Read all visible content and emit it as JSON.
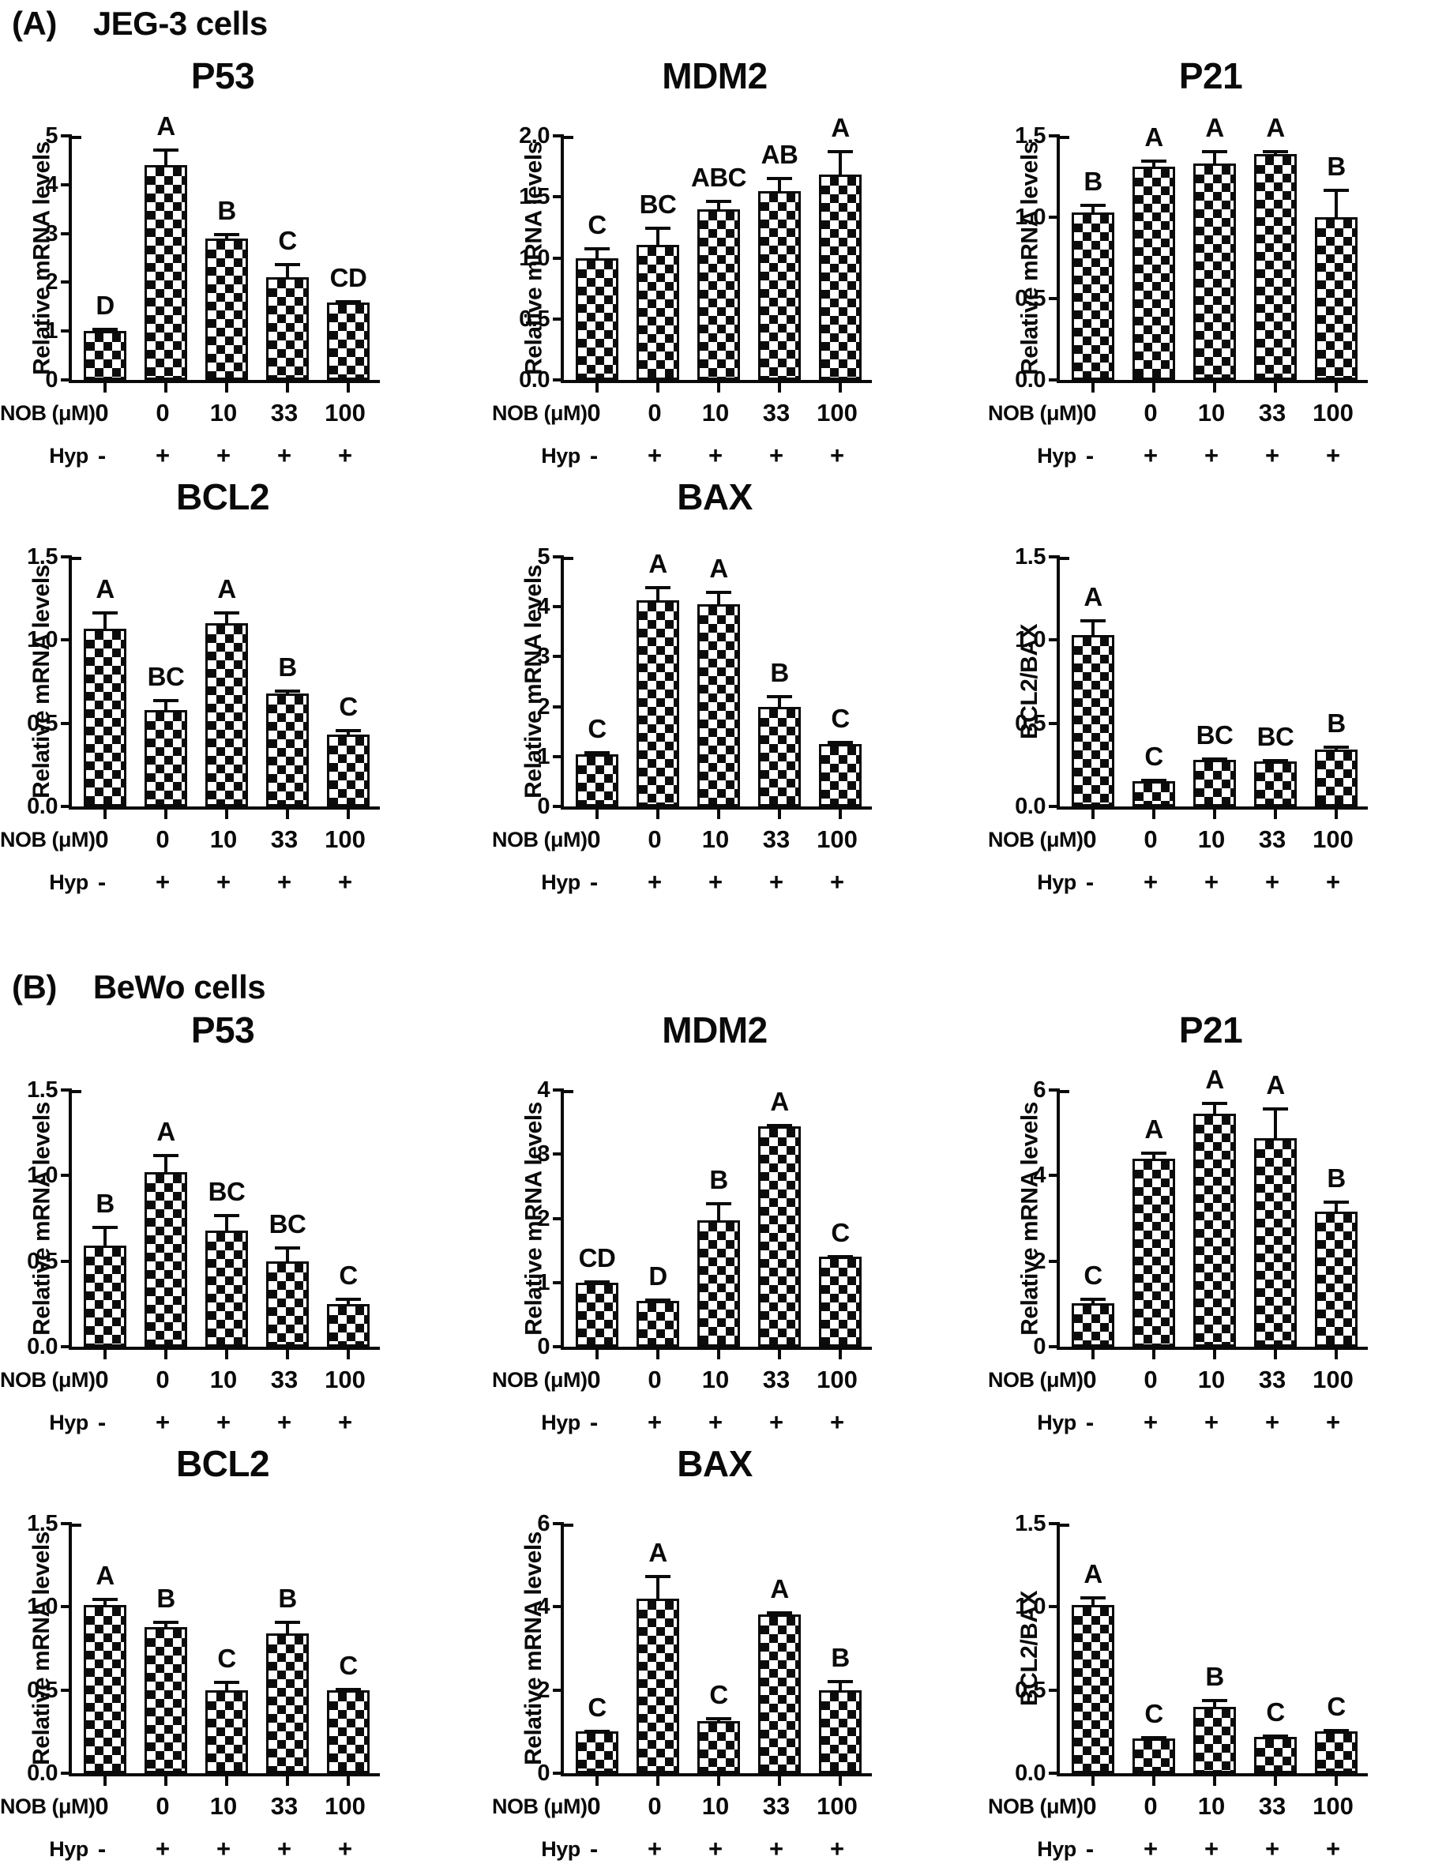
{
  "page": {
    "background": "#ffffff",
    "ink": "#0a0a0a",
    "bar_pattern": "black-white-checkerboard"
  },
  "panels": [
    {
      "id": "A",
      "label": "(A)",
      "cell_line": "JEG-3 cells"
    },
    {
      "id": "B",
      "label": "(B)",
      "cell_line": "BeWo cells"
    }
  ],
  "x_axis": {
    "nob_label": "NOB (μM)",
    "hyp_label": "Hyp",
    "nob_values": [
      "0",
      "0",
      "10",
      "33",
      "100"
    ],
    "hyp_values": [
      "-",
      "+",
      "+",
      "+",
      "+"
    ]
  },
  "chart_data": [
    {
      "panel": "A",
      "type": "bar",
      "title": "P53",
      "ylabel": "Relative mRNA levels",
      "ylim": [
        0,
        5
      ],
      "yticks": [
        "0",
        "1",
        "2",
        "3",
        "4",
        "5"
      ],
      "categories": [
        "0",
        "0",
        "10",
        "33",
        "100"
      ],
      "hyp": [
        "-",
        "+",
        "+",
        "+",
        "+"
      ],
      "bars": [
        {
          "value": 1.0,
          "error": 0.05,
          "sig": "D"
        },
        {
          "value": 4.4,
          "error": 0.33,
          "sig": "A"
        },
        {
          "value": 2.9,
          "error": 0.1,
          "sig": "B"
        },
        {
          "value": 2.1,
          "error": 0.28,
          "sig": "C"
        },
        {
          "value": 1.58,
          "error": 0.04,
          "sig": "CD"
        }
      ]
    },
    {
      "panel": "A",
      "type": "bar",
      "title": "MDM2",
      "ylabel": "Relative mRNA levels",
      "ylim": [
        0,
        2.0
      ],
      "yticks": [
        "0.0",
        "0.5",
        "1.0",
        "1.5",
        "2.0"
      ],
      "categories": [
        "0",
        "0",
        "10",
        "33",
        "100"
      ],
      "hyp": [
        "-",
        "+",
        "+",
        "+",
        "+"
      ],
      "bars": [
        {
          "value": 1.0,
          "error": 0.08,
          "sig": "C"
        },
        {
          "value": 1.11,
          "error": 0.14,
          "sig": "BC"
        },
        {
          "value": 1.4,
          "error": 0.07,
          "sig": "ABC"
        },
        {
          "value": 1.55,
          "error": 0.11,
          "sig": "AB"
        },
        {
          "value": 1.68,
          "error": 0.2,
          "sig": "A"
        }
      ]
    },
    {
      "panel": "A",
      "type": "bar",
      "title": "P21",
      "ylabel": "Relative mRNA levels",
      "ylim": [
        0,
        1.5
      ],
      "yticks": [
        "0.0",
        "0.5",
        "1.0",
        "1.5"
      ],
      "categories": [
        "0",
        "0",
        "10",
        "33",
        "100"
      ],
      "hyp": [
        "-",
        "+",
        "+",
        "+",
        "+"
      ],
      "bars": [
        {
          "value": 1.03,
          "error": 0.05,
          "sig": "B"
        },
        {
          "value": 1.31,
          "error": 0.04,
          "sig": "A"
        },
        {
          "value": 1.33,
          "error": 0.08,
          "sig": "A"
        },
        {
          "value": 1.39,
          "error": 0.02,
          "sig": "A"
        },
        {
          "value": 1.0,
          "error": 0.17,
          "sig": "B"
        }
      ]
    },
    {
      "panel": "A",
      "type": "bar",
      "title": "BCL2",
      "ylabel": "Relative mRNA levels",
      "ylim": [
        0,
        1.5
      ],
      "yticks": [
        "0.0",
        "0.5",
        "1.0",
        "1.5"
      ],
      "categories": [
        "0",
        "0",
        "10",
        "33",
        "100"
      ],
      "hyp": [
        "-",
        "+",
        "+",
        "+",
        "+"
      ],
      "bars": [
        {
          "value": 1.07,
          "error": 0.1,
          "sig": "A"
        },
        {
          "value": 0.58,
          "error": 0.06,
          "sig": "BC"
        },
        {
          "value": 1.1,
          "error": 0.07,
          "sig": "A"
        },
        {
          "value": 0.68,
          "error": 0.02,
          "sig": "B"
        },
        {
          "value": 0.43,
          "error": 0.03,
          "sig": "C"
        }
      ]
    },
    {
      "panel": "A",
      "type": "bar",
      "title": "BAX",
      "ylabel": "Relative mRNA levels",
      "ylim": [
        0,
        5
      ],
      "yticks": [
        "0",
        "1",
        "2",
        "3",
        "4",
        "5"
      ],
      "categories": [
        "0",
        "0",
        "10",
        "33",
        "100"
      ],
      "hyp": [
        "-",
        "+",
        "+",
        "+",
        "+"
      ],
      "bars": [
        {
          "value": 1.05,
          "error": 0.04,
          "sig": "C"
        },
        {
          "value": 4.13,
          "error": 0.27,
          "sig": "A"
        },
        {
          "value": 4.05,
          "error": 0.25,
          "sig": "A"
        },
        {
          "value": 2.0,
          "error": 0.22,
          "sig": "B"
        },
        {
          "value": 1.25,
          "error": 0.04,
          "sig": "C"
        }
      ]
    },
    {
      "panel": "A",
      "type": "bar",
      "title": "",
      "ylabel": "BCL2/BAX",
      "ylim": [
        0,
        1.5
      ],
      "yticks": [
        "0.0",
        "0.5",
        "1.0",
        "1.5"
      ],
      "categories": [
        "0",
        "0",
        "10",
        "33",
        "100"
      ],
      "hyp": [
        "-",
        "+",
        "+",
        "+",
        "+"
      ],
      "bars": [
        {
          "value": 1.03,
          "error": 0.09,
          "sig": "A"
        },
        {
          "value": 0.15,
          "error": 0.01,
          "sig": "C"
        },
        {
          "value": 0.28,
          "error": 0.01,
          "sig": "BC"
        },
        {
          "value": 0.27,
          "error": 0.01,
          "sig": "BC"
        },
        {
          "value": 0.34,
          "error": 0.02,
          "sig": "B"
        }
      ]
    },
    {
      "panel": "B",
      "type": "bar",
      "title": "P53",
      "ylabel": "Relative mRNA levels",
      "ylim": [
        0,
        1.5
      ],
      "yticks": [
        "0.0",
        "0.5",
        "1.0",
        "1.5"
      ],
      "categories": [
        "0",
        "0",
        "10",
        "33",
        "100"
      ],
      "hyp": [
        "-",
        "+",
        "+",
        "+",
        "+"
      ],
      "bars": [
        {
          "value": 0.59,
          "error": 0.11,
          "sig": "B"
        },
        {
          "value": 1.02,
          "error": 0.1,
          "sig": "A"
        },
        {
          "value": 0.68,
          "error": 0.09,
          "sig": "BC"
        },
        {
          "value": 0.5,
          "error": 0.08,
          "sig": "BC"
        },
        {
          "value": 0.25,
          "error": 0.03,
          "sig": "C"
        }
      ]
    },
    {
      "panel": "B",
      "type": "bar",
      "title": "MDM2",
      "ylabel": "Relative mRNA levels",
      "ylim": [
        0,
        4
      ],
      "yticks": [
        "0",
        "1",
        "2",
        "3",
        "4"
      ],
      "categories": [
        "0",
        "0",
        "10",
        "33",
        "100"
      ],
      "hyp": [
        "-",
        "+",
        "+",
        "+",
        "+"
      ],
      "bars": [
        {
          "value": 1.0,
          "error": 0.02,
          "sig": "CD"
        },
        {
          "value": 0.72,
          "error": 0.02,
          "sig": "D"
        },
        {
          "value": 1.97,
          "error": 0.27,
          "sig": "B"
        },
        {
          "value": 3.43,
          "error": 0.03,
          "sig": "A"
        },
        {
          "value": 1.4,
          "error": 0.02,
          "sig": "C"
        }
      ]
    },
    {
      "panel": "B",
      "type": "bar",
      "title": "P21",
      "ylabel": "Relative mRNA levels",
      "ylim": [
        0,
        6
      ],
      "yticks": [
        "0",
        "2",
        "4",
        "6"
      ],
      "categories": [
        "0",
        "0",
        "10",
        "33",
        "100"
      ],
      "hyp": [
        "-",
        "+",
        "+",
        "+",
        "+"
      ],
      "bars": [
        {
          "value": 1.02,
          "error": 0.1,
          "sig": "C"
        },
        {
          "value": 4.4,
          "error": 0.15,
          "sig": "A"
        },
        {
          "value": 5.45,
          "error": 0.25,
          "sig": "A"
        },
        {
          "value": 4.88,
          "error": 0.7,
          "sig": "A"
        },
        {
          "value": 3.15,
          "error": 0.25,
          "sig": "B"
        }
      ]
    },
    {
      "panel": "B",
      "type": "bar",
      "title": "BCL2",
      "ylabel": "Relative mRNA levels",
      "ylim": [
        0,
        1.5
      ],
      "yticks": [
        "0.0",
        "0.5",
        "1.0",
        "1.5"
      ],
      "categories": [
        "0",
        "0",
        "10",
        "33",
        "100"
      ],
      "hyp": [
        "-",
        "+",
        "+",
        "+",
        "+"
      ],
      "bars": [
        {
          "value": 1.01,
          "error": 0.04,
          "sig": "A"
        },
        {
          "value": 0.88,
          "error": 0.03,
          "sig": "B"
        },
        {
          "value": 0.5,
          "error": 0.05,
          "sig": "C"
        },
        {
          "value": 0.84,
          "error": 0.07,
          "sig": "B"
        },
        {
          "value": 0.5,
          "error": 0.01,
          "sig": "C"
        }
      ]
    },
    {
      "panel": "B",
      "type": "bar",
      "title": "BAX",
      "ylabel": "Relative mRNA levels",
      "ylim": [
        0,
        6
      ],
      "yticks": [
        "0",
        "2",
        "4",
        "6"
      ],
      "categories": [
        "0",
        "0",
        "10",
        "33",
        "100"
      ],
      "hyp": [
        "-",
        "+",
        "+",
        "+",
        "+"
      ],
      "bars": [
        {
          "value": 1.0,
          "error": 0.03,
          "sig": "C"
        },
        {
          "value": 4.2,
          "error": 0.55,
          "sig": "A"
        },
        {
          "value": 1.25,
          "error": 0.07,
          "sig": "C"
        },
        {
          "value": 3.82,
          "error": 0.05,
          "sig": "A"
        },
        {
          "value": 2.0,
          "error": 0.22,
          "sig": "B"
        }
      ]
    },
    {
      "panel": "B",
      "type": "bar",
      "title": "",
      "ylabel": "BCL2/BAX",
      "ylim": [
        0,
        1.5
      ],
      "yticks": [
        "0.0",
        "0.5",
        "1.0",
        "1.5"
      ],
      "categories": [
        "0",
        "0",
        "10",
        "33",
        "100"
      ],
      "hyp": [
        "-",
        "+",
        "+",
        "+",
        "+"
      ],
      "bars": [
        {
          "value": 1.01,
          "error": 0.05,
          "sig": "A"
        },
        {
          "value": 0.21,
          "error": 0.01,
          "sig": "C"
        },
        {
          "value": 0.4,
          "error": 0.04,
          "sig": "B"
        },
        {
          "value": 0.22,
          "error": 0.01,
          "sig": "C"
        },
        {
          "value": 0.25,
          "error": 0.01,
          "sig": "C"
        }
      ]
    }
  ]
}
